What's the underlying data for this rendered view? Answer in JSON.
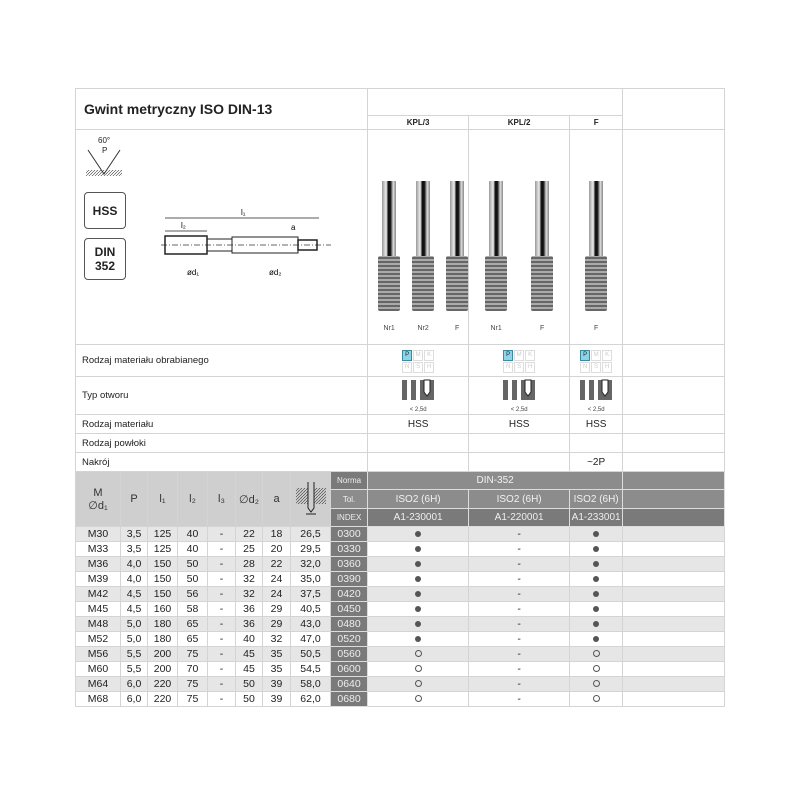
{
  "title": "Gwint metryczny ISO DIN-13",
  "thread_icon": {
    "angle": "60°",
    "pitch": "P"
  },
  "badges": {
    "material": "HSS",
    "norm_line1": "DIN",
    "norm_line2": "352"
  },
  "drawing": {
    "l1": "l₁",
    "l2": "l₂",
    "a": "a",
    "d1": "ød₁",
    "d2": "ød₂"
  },
  "sets": [
    {
      "label": "KPL/3",
      "taps": [
        "Nr1",
        "Nr2",
        "F"
      ],
      "material": "HSS",
      "hole_note": "< 2,5d",
      "nakroj": "",
      "tol": "ISO2 (6H)",
      "index": "A1-230001",
      "materials_active": [
        "P"
      ]
    },
    {
      "label": "KPL/2",
      "taps": [
        "Nr1",
        "F"
      ],
      "material": "HSS",
      "hole_note": "< 2,5d",
      "nakroj": "",
      "tol": "ISO2 (6H)",
      "index": "A1-220001",
      "materials_active": [
        "P"
      ]
    },
    {
      "label": "F",
      "taps": [
        "F"
      ],
      "material": "HSS",
      "hole_note": "< 2,5d",
      "nakroj": "~2P",
      "tol": "ISO2 (6H)",
      "index": "A1-233001",
      "materials_active": [
        "P"
      ]
    }
  ],
  "material_groups": [
    "P",
    "M",
    "K",
    "N",
    "S",
    "H"
  ],
  "row_labels": {
    "workpiece": "Rodzaj materiału obrabianego",
    "hole": "Typ otworu",
    "material": "Rodzaj materiału",
    "coating": "Rodzaj powłoki",
    "chamfer": "Nakrój"
  },
  "columns": {
    "m": "M",
    "d1": "∅d₁",
    "p": "P",
    "l1": "l₁",
    "l2": "l₂",
    "l3": "l₃",
    "d2": "∅d₂",
    "a": "a",
    "norma": "Norma",
    "tol": "Tol.",
    "index": "INDEX"
  },
  "norma": "DIN-352",
  "rows": [
    {
      "m": "M30",
      "p": "3,5",
      "l1": "125",
      "l2": "40",
      "l3": "-",
      "d2": "22",
      "a": "18",
      "drill": "26,5",
      "idx": "0300",
      "avail": [
        "filled",
        "-",
        "filled"
      ]
    },
    {
      "m": "M33",
      "p": "3,5",
      "l1": "125",
      "l2": "40",
      "l3": "-",
      "d2": "25",
      "a": "20",
      "drill": "29,5",
      "idx": "0330",
      "avail": [
        "filled",
        "-",
        "filled"
      ]
    },
    {
      "m": "M36",
      "p": "4,0",
      "l1": "150",
      "l2": "50",
      "l3": "-",
      "d2": "28",
      "a": "22",
      "drill": "32,0",
      "idx": "0360",
      "avail": [
        "filled",
        "-",
        "filled"
      ]
    },
    {
      "m": "M39",
      "p": "4,0",
      "l1": "150",
      "l2": "50",
      "l3": "-",
      "d2": "32",
      "a": "24",
      "drill": "35,0",
      "idx": "0390",
      "avail": [
        "filled",
        "-",
        "filled"
      ]
    },
    {
      "m": "M42",
      "p": "4,5",
      "l1": "150",
      "l2": "56",
      "l3": "-",
      "d2": "32",
      "a": "24",
      "drill": "37,5",
      "idx": "0420",
      "avail": [
        "filled",
        "-",
        "filled"
      ]
    },
    {
      "m": "M45",
      "p": "4,5",
      "l1": "160",
      "l2": "58",
      "l3": "-",
      "d2": "36",
      "a": "29",
      "drill": "40,5",
      "idx": "0450",
      "avail": [
        "filled",
        "-",
        "filled"
      ]
    },
    {
      "m": "M48",
      "p": "5,0",
      "l1": "180",
      "l2": "65",
      "l3": "-",
      "d2": "36",
      "a": "29",
      "drill": "43,0",
      "idx": "0480",
      "avail": [
        "filled",
        "-",
        "filled"
      ]
    },
    {
      "m": "M52",
      "p": "5,0",
      "l1": "180",
      "l2": "65",
      "l3": "-",
      "d2": "40",
      "a": "32",
      "drill": "47,0",
      "idx": "0520",
      "avail": [
        "filled",
        "-",
        "filled"
      ]
    },
    {
      "m": "M56",
      "p": "5,5",
      "l1": "200",
      "l2": "75",
      "l3": "-",
      "d2": "45",
      "a": "35",
      "drill": "50,5",
      "idx": "0560",
      "avail": [
        "open",
        "-",
        "open"
      ]
    },
    {
      "m": "M60",
      "p": "5,5",
      "l1": "200",
      "l2": "70",
      "l3": "-",
      "d2": "45",
      "a": "35",
      "drill": "54,5",
      "idx": "0600",
      "avail": [
        "open",
        "-",
        "open"
      ]
    },
    {
      "m": "M64",
      "p": "6,0",
      "l1": "220",
      "l2": "75",
      "l3": "-",
      "d2": "50",
      "a": "39",
      "drill": "58,0",
      "idx": "0640",
      "avail": [
        "open",
        "-",
        "open"
      ]
    },
    {
      "m": "M68",
      "p": "6,0",
      "l1": "220",
      "l2": "75",
      "l3": "-",
      "d2": "50",
      "a": "39",
      "drill": "62,0",
      "idx": "0680",
      "avail": [
        "open",
        "-",
        "open"
      ]
    }
  ]
}
